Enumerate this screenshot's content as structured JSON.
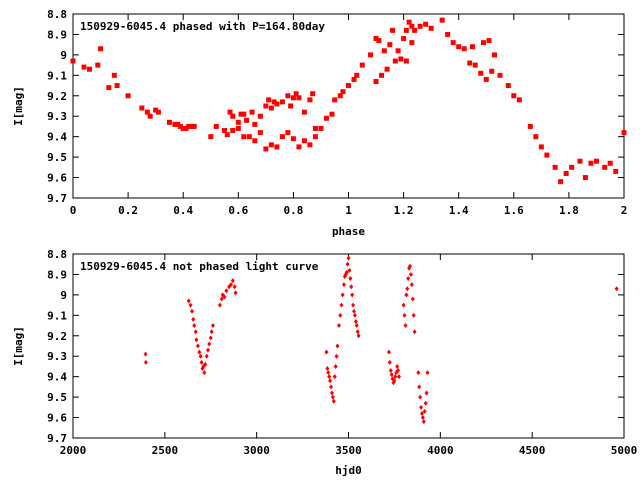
{
  "chart_data": [
    {
      "type": "scatter",
      "title": "150929-6045.4 phased with P=164.80day",
      "xlabel": "phase",
      "ylabel": "I[mag]",
      "xlim": [
        0,
        2
      ],
      "ylim": [
        9.7,
        8.8
      ],
      "y_inverted": true,
      "grid": false,
      "x_ticks": [
        "0",
        "0.2",
        "0.4",
        "0.6",
        "0.8",
        "1",
        "1.2",
        "1.4",
        "1.6",
        "1.8",
        "2"
      ],
      "x_tick_values": [
        0,
        0.2,
        0.4,
        0.6,
        0.8,
        1.0,
        1.2,
        1.4,
        1.6,
        1.8,
        2.0
      ],
      "y_ticks": [
        "8.8",
        "8.9",
        "9",
        "9.1",
        "9.2",
        "9.3",
        "9.4",
        "9.5",
        "9.6",
        "9.7"
      ],
      "y_tick_values": [
        8.8,
        8.9,
        9.0,
        9.1,
        9.2,
        9.3,
        9.4,
        9.5,
        9.6,
        9.7
      ],
      "marker_color": "#ff0000",
      "series": [
        {
          "x": [
            0.0,
            0.04,
            0.06,
            0.09,
            0.1,
            0.13,
            0.15,
            0.16,
            0.2,
            0.25,
            0.27,
            0.28,
            0.3,
            0.31,
            0.35,
            0.37,
            0.38,
            0.39,
            0.4,
            0.41,
            0.42,
            0.43,
            0.44,
            0.5,
            0.52,
            0.55,
            0.57,
            0.58,
            0.6,
            0.61,
            0.62,
            0.63,
            0.65,
            0.66,
            0.68,
            0.7,
            0.71,
            0.72,
            0.73,
            0.74,
            0.76,
            0.78,
            0.79,
            0.8,
            0.81,
            0.82,
            0.84,
            0.86,
            0.87,
            0.88,
            0.9,
            0.92,
            0.94,
            0.56,
            0.58,
            0.6,
            0.62,
            0.64,
            0.66,
            0.68,
            0.7,
            0.72,
            0.74,
            0.76,
            0.78,
            0.8,
            0.82,
            0.84,
            0.86,
            0.88,
            0.95,
            0.97,
            0.98,
            1.0,
            1.02,
            1.03,
            1.05,
            1.08,
            1.1,
            1.11,
            1.13,
            1.15,
            1.16,
            1.18,
            1.2,
            1.21,
            1.22,
            1.23,
            1.24,
            1.26,
            1.28,
            1.3,
            1.1,
            1.12,
            1.14,
            1.17,
            1.19,
            1.21,
            1.23,
            1.34,
            1.36,
            1.38,
            1.4,
            1.42,
            1.44,
            1.46,
            1.48,
            1.5,
            1.52,
            1.55,
            1.58,
            1.6,
            1.62,
            1.45,
            1.49,
            1.51,
            1.53,
            1.66,
            1.68,
            1.7,
            1.72,
            1.75,
            1.77,
            1.79,
            1.81,
            1.84,
            1.86,
            1.88,
            1.9,
            1.93,
            1.95,
            1.97,
            2.0
          ],
          "y": [
            9.03,
            9.06,
            9.07,
            9.05,
            8.97,
            9.16,
            9.1,
            9.15,
            9.2,
            9.26,
            9.28,
            9.3,
            9.27,
            9.28,
            9.33,
            9.34,
            9.34,
            9.35,
            9.36,
            9.36,
            9.35,
            9.35,
            9.35,
            9.4,
            9.35,
            9.37,
            9.28,
            9.3,
            9.33,
            9.29,
            9.29,
            9.32,
            9.28,
            9.34,
            9.3,
            9.25,
            9.22,
            9.26,
            9.23,
            9.24,
            9.23,
            9.2,
            9.25,
            9.21,
            9.19,
            9.21,
            9.28,
            9.22,
            9.19,
            9.36,
            9.36,
            9.31,
            9.29,
            9.39,
            9.37,
            9.36,
            9.4,
            9.4,
            9.42,
            9.38,
            9.46,
            9.44,
            9.45,
            9.4,
            9.38,
            9.41,
            9.45,
            9.42,
            9.44,
            9.4,
            9.22,
            9.2,
            9.18,
            9.15,
            9.12,
            9.1,
            9.05,
            9.0,
            8.92,
            8.93,
            8.98,
            8.95,
            8.88,
            8.98,
            8.92,
            8.88,
            8.84,
            8.86,
            8.88,
            8.86,
            8.85,
            8.87,
            9.13,
            9.1,
            9.07,
            9.03,
            9.02,
            9.03,
            8.94,
            8.83,
            8.9,
            8.94,
            8.96,
            8.97,
            9.04,
            9.05,
            9.09,
            9.12,
            9.08,
            9.1,
            9.15,
            9.2,
            9.22,
            8.96,
            8.94,
            8.93,
            9.0,
            9.35,
            9.4,
            9.45,
            9.49,
            9.55,
            9.62,
            9.58,
            9.55,
            9.52,
            9.6,
            9.53,
            9.52,
            9.55,
            9.53,
            9.57,
            9.38
          ]
        }
      ]
    },
    {
      "type": "scatter",
      "title": "150929-6045.4 not phased light curve",
      "xlabel": "hjd0",
      "ylabel": "I[mag]",
      "xlim": [
        2000,
        5000
      ],
      "ylim": [
        9.7,
        8.8
      ],
      "y_inverted": true,
      "grid": false,
      "x_ticks": [
        "2000",
        "2500",
        "3000",
        "3500",
        "4000",
        "4500",
        "5000"
      ],
      "x_tick_values": [
        2000,
        2500,
        3000,
        3500,
        4000,
        4500,
        5000
      ],
      "y_ticks": [
        "8.8",
        "8.9",
        "9",
        "9.1",
        "9.2",
        "9.3",
        "9.4",
        "9.5",
        "9.6",
        "9.7"
      ],
      "y_tick_values": [
        8.8,
        8.9,
        9.0,
        9.1,
        9.2,
        9.3,
        9.4,
        9.5,
        9.6,
        9.7
      ],
      "marker_color": "#ff0000",
      "series": [
        {
          "x": [
            2395,
            2397,
            2630,
            2640,
            2648,
            2655,
            2660,
            2668,
            2672,
            2680,
            2688,
            2695,
            2700,
            2705,
            2710,
            2715,
            2720,
            2728,
            2735,
            2742,
            2750,
            2755,
            2762,
            2800,
            2810,
            2815,
            2825,
            2835,
            2850,
            2860,
            2870,
            2880,
            2885,
            3380,
            3385,
            3390,
            3395,
            3400,
            3405,
            3410,
            3415,
            3420,
            3425,
            3430,
            3435,
            3440,
            3448,
            3455,
            3462,
            3468,
            3475,
            3480,
            3485,
            3490,
            3495,
            3500,
            3505,
            3510,
            3515,
            3520,
            3525,
            3530,
            3535,
            3540,
            3545,
            3550,
            3555,
            3720,
            3725,
            3730,
            3735,
            3740,
            3745,
            3750,
            3755,
            3760,
            3765,
            3770,
            3775,
            3800,
            3805,
            3810,
            3815,
            3820,
            3825,
            3830,
            3835,
            3840,
            3845,
            3850,
            3855,
            3860,
            3880,
            3885,
            3890,
            3895,
            3900,
            3905,
            3910,
            3915,
            3920,
            3925,
            3930,
            4960
          ],
          "y": [
            9.29,
            9.33,
            9.03,
            9.05,
            9.08,
            9.12,
            9.15,
            9.18,
            9.22,
            9.25,
            9.28,
            9.3,
            9.33,
            9.36,
            9.35,
            9.38,
            9.34,
            9.3,
            9.27,
            9.24,
            9.21,
            9.18,
            9.15,
            9.05,
            9.02,
            9.0,
            9.01,
            8.98,
            8.96,
            8.95,
            8.93,
            8.96,
            8.99,
            9.28,
            9.36,
            9.38,
            9.4,
            9.42,
            9.45,
            9.48,
            9.5,
            9.52,
            9.4,
            9.35,
            9.3,
            9.25,
            9.15,
            9.1,
            9.05,
            9.0,
            8.95,
            8.91,
            8.9,
            8.89,
            8.85,
            8.82,
            8.88,
            8.92,
            8.96,
            9.0,
            9.05,
            9.08,
            9.1,
            9.13,
            9.15,
            9.18,
            9.2,
            9.28,
            9.33,
            9.37,
            9.39,
            9.41,
            9.43,
            9.42,
            9.4,
            9.38,
            9.35,
            9.37,
            9.4,
            9.05,
            9.1,
            9.15,
            9.0,
            8.97,
            8.92,
            8.87,
            8.86,
            8.9,
            8.95,
            9.02,
            9.1,
            9.18,
            9.38,
            9.45,
            9.5,
            9.55,
            9.58,
            9.6,
            9.62,
            9.57,
            9.53,
            9.48,
            9.38,
            8.97
          ]
        }
      ]
    }
  ]
}
